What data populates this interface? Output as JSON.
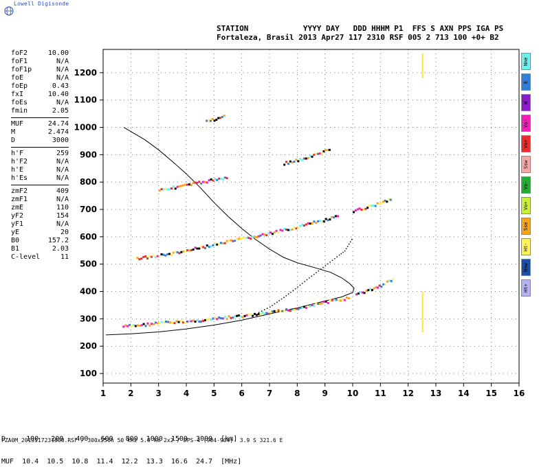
{
  "brand": "Lowell Digisonde",
  "header": {
    "line1": "STATION            YYYY DAY   DDD HHHM P1  FFS S AXN PPS IGA PS",
    "line2": "Fortaleza, Brasil 2013 Apr27 117 2310 RSF 005 2 713 100 +0+ B2"
  },
  "params": [
    [
      {
        "k": "foF2",
        "v": "10.00"
      },
      {
        "k": "foF1",
        "v": "N/A"
      },
      {
        "k": "foF1p",
        "v": "N/A"
      },
      {
        "k": "foE",
        "v": "N/A"
      },
      {
        "k": "foEp",
        "v": "0.43"
      },
      {
        "k": "fxI",
        "v": "10.40"
      },
      {
        "k": "foEs",
        "v": "N/A"
      },
      {
        "k": "fmin",
        "v": "2.05"
      }
    ],
    [
      {
        "k": "MUF",
        "v": "24.74"
      },
      {
        "k": "M",
        "v": "2.474"
      },
      {
        "k": "D",
        "v": "3000"
      }
    ],
    [
      {
        "k": "h'F",
        "v": "259"
      },
      {
        "k": "h'F2",
        "v": "N/A"
      },
      {
        "k": "h'E",
        "v": "N/A"
      },
      {
        "k": "h'Es",
        "v": "N/A"
      }
    ],
    [
      {
        "k": "zmF2",
        "v": "409"
      },
      {
        "k": "zmF1",
        "v": "N/A"
      },
      {
        "k": "zmE",
        "v": "110"
      },
      {
        "k": "yF2",
        "v": "154"
      },
      {
        "k": "yF1",
        "v": "N/A"
      },
      {
        "k": "yE",
        "v": "20"
      },
      {
        "k": "B0",
        "v": "157.2"
      },
      {
        "k": "B1",
        "v": "2.03"
      },
      {
        "k": "C-level",
        "v": "11"
      }
    ]
  ],
  "legend": [
    {
      "label": "Nne",
      "color": "#6ef0ee"
    },
    {
      "label": "E",
      "color": "#2f7fd9"
    },
    {
      "label": "W",
      "color": "#8a1fc9"
    },
    {
      "label": "Vo-",
      "color": "#f21fb4"
    },
    {
      "label": "Vo+",
      "color": "#ee2a2a"
    },
    {
      "label": "Ssw",
      "color": "#f7a6a6"
    },
    {
      "label": "Vo-",
      "color": "#1fae2f"
    },
    {
      "label": "Vo+",
      "color": "#c9f03a"
    },
    {
      "label": "Sse",
      "color": "#f9a316"
    },
    {
      "label": "Ht-",
      "color": "#fff25a"
    },
    {
      "label": "Nnw",
      "color": "#1a4fa8"
    },
    {
      "label": "Ht+",
      "color": "#b6b2f0"
    }
  ],
  "bottom": {
    "line1": "D     100   200   400   600   800  1000  1500  3000  [km]",
    "line2": "MUF  10.4  10.5  10.8  11.4  12.2  13.3  16.6  24.7  [MHz]"
  },
  "footer": "FZA0M_2013117231000.RSF / 300x256h 50 kHz 5.0 km 2x2 / DPS-4 (904-904)  3.9 S 321.6 E",
  "chart_data": {
    "type": "scatter",
    "x": {
      "min": 1,
      "max": 16,
      "ticks": [
        1,
        2,
        3,
        4,
        5,
        6,
        7,
        8,
        9,
        10,
        11,
        12,
        13,
        14,
        15,
        16
      ]
    },
    "y": {
      "min": 65,
      "max": 1285,
      "ticks": [
        100,
        200,
        300,
        400,
        500,
        600,
        700,
        800,
        900,
        1000,
        1100,
        1200
      ]
    },
    "grid": "dotted",
    "series": [
      {
        "type": "line",
        "values": [
          [
            1.1,
            241
          ],
          [
            2.0,
            245
          ],
          [
            3.0,
            252
          ],
          [
            4.0,
            263
          ],
          [
            5.0,
            277
          ],
          [
            6.0,
            295
          ],
          [
            7.0,
            318
          ],
          [
            8.0,
            340
          ],
          [
            9.0,
            365
          ],
          [
            9.6,
            380
          ],
          [
            10.0,
            396
          ]
        ]
      },
      {
        "type": "line",
        "values": [
          [
            10.0,
            396
          ],
          [
            10.05,
            412
          ],
          [
            9.9,
            428
          ],
          [
            9.6,
            450
          ],
          [
            9.2,
            470
          ],
          [
            8.7,
            485
          ],
          [
            8.0,
            505
          ],
          [
            7.5,
            525
          ],
          [
            7.0,
            555
          ],
          [
            6.5,
            590
          ],
          [
            6.0,
            630
          ],
          [
            5.5,
            675
          ],
          [
            5.0,
            725
          ],
          [
            4.5,
            780
          ],
          [
            4.0,
            830
          ],
          [
            3.5,
            875
          ],
          [
            3.0,
            918
          ],
          [
            2.5,
            955
          ],
          [
            2.0,
            985
          ],
          [
            1.75,
            1000
          ]
        ]
      },
      {
        "type": "dots",
        "values": [
          [
            6.6,
            325
          ],
          [
            7.0,
            345
          ],
          [
            7.5,
            380
          ],
          [
            8.0,
            418
          ],
          [
            8.5,
            458
          ],
          [
            9.0,
            496
          ],
          [
            9.5,
            535
          ],
          [
            9.7,
            550
          ],
          [
            10.0,
            600
          ]
        ]
      },
      {
        "type": "trace",
        "values": [
          [
            1.7,
            275
          ],
          [
            2.5,
            282
          ],
          [
            3.0,
            288
          ],
          [
            4.0,
            293
          ],
          [
            5.0,
            303
          ],
          [
            6.0,
            313
          ],
          [
            7.0,
            325
          ],
          [
            8.0,
            342
          ],
          [
            9.0,
            365
          ],
          [
            9.9,
            380
          ]
        ]
      },
      {
        "type": "trace",
        "values": [
          [
            10.1,
            392
          ],
          [
            10.6,
            410
          ],
          [
            11.0,
            425
          ],
          [
            11.5,
            450
          ]
        ]
      },
      {
        "type": "trace",
        "values": [
          [
            2.2,
            525
          ],
          [
            3.0,
            534
          ],
          [
            4.0,
            552
          ],
          [
            5.0,
            575
          ],
          [
            6.0,
            595
          ],
          [
            7.0,
            615
          ],
          [
            8.0,
            640
          ],
          [
            9.0,
            665
          ],
          [
            9.5,
            678
          ]
        ]
      },
      {
        "type": "trace",
        "values": [
          [
            10.0,
            695
          ],
          [
            10.5,
            712
          ],
          [
            11.0,
            728
          ],
          [
            11.4,
            745
          ]
        ]
      },
      {
        "type": "trace",
        "values": [
          [
            3.0,
            775
          ],
          [
            4.0,
            792
          ],
          [
            5.0,
            812
          ],
          [
            5.5,
            822
          ]
        ]
      },
      {
        "type": "trace",
        "values": [
          [
            7.5,
            872
          ],
          [
            8.0,
            883
          ],
          [
            8.5,
            898
          ],
          [
            9.2,
            925
          ]
        ]
      },
      {
        "type": "trace",
        "values": [
          [
            4.7,
            1025
          ],
          [
            5.4,
            1045
          ]
        ]
      },
      {
        "type": "vline",
        "values": [
          [
            12.52,
            250
          ],
          [
            12.52,
            400
          ]
        ]
      },
      {
        "type": "vline",
        "values": [
          [
            12.52,
            1180
          ],
          [
            12.52,
            1270
          ]
        ]
      }
    ]
  }
}
